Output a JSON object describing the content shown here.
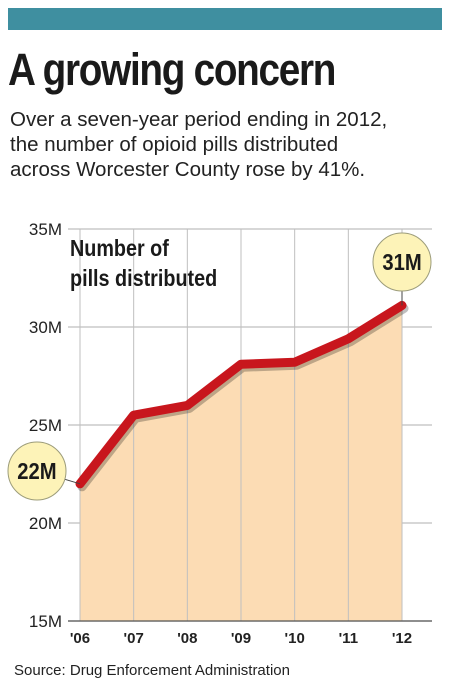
{
  "header": {
    "title": "A growing concern",
    "subtitle_lines": [
      "Over a seven-year period ending in 2012,",
      "the number of opioid pills distributed",
      "across Worcester County rose by 41%."
    ]
  },
  "source": "Source: Drug Enforcement Administration",
  "colors": {
    "accent_bar": "#3f8fa0",
    "line": "#c8161d",
    "area_fill": "#fcdcb4",
    "callout_fill": "#fdf3b8",
    "grid": "#bfbfbf"
  },
  "chart_data": {
    "type": "area",
    "title": "Number of pills distributed",
    "title_lines": [
      "Number of",
      "pills distributed"
    ],
    "categories": [
      "'06",
      "'07",
      "'08",
      "'09",
      "'10",
      "'11",
      "'12"
    ],
    "series": [
      {
        "values": [
          22,
          25.5,
          26,
          28.1,
          28.2,
          29.4,
          31.1
        ]
      }
    ],
    "ylim": [
      15,
      35
    ],
    "yticks": [
      15,
      20,
      25,
      30,
      35
    ],
    "ytick_labels": [
      "15M",
      "20M",
      "25M",
      "30M",
      "35M"
    ],
    "unit": "M",
    "grid": true,
    "annotations": [
      {
        "label": "22M",
        "index": 0
      },
      {
        "label": "31M",
        "index": 6
      }
    ]
  }
}
